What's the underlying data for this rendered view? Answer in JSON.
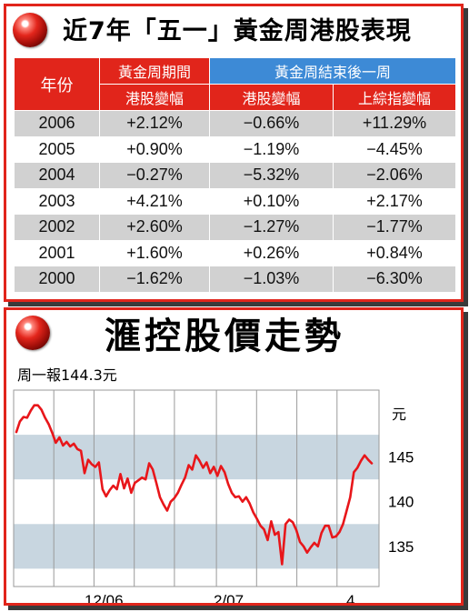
{
  "table_panel": {
    "title": "近7年「五一」黃金周港股表現",
    "headers": {
      "year": "年份",
      "during_main": "黃金周期間",
      "during_sub": "港股變幅",
      "after_main": "黃金周結束後一周",
      "after_hk": "港股變幅",
      "after_sh": "上綜指變幅"
    },
    "rows": [
      {
        "year": "2006",
        "during": "+2.12%",
        "after_hk": "−0.66%",
        "after_sh": "+11.29%"
      },
      {
        "year": "2005",
        "during": "+0.90%",
        "after_hk": "−1.19%",
        "after_sh": "−4.45%"
      },
      {
        "year": "2004",
        "during": "−0.27%",
        "after_hk": "−5.32%",
        "after_sh": "−2.06%"
      },
      {
        "year": "2003",
        "during": "+4.21%",
        "after_hk": "+0.10%",
        "after_sh": "+2.17%"
      },
      {
        "year": "2002",
        "during": "+2.60%",
        "after_hk": "−1.27%",
        "after_sh": "−1.77%"
      },
      {
        "year": "2001",
        "during": "+1.60%",
        "after_hk": "+0.26%",
        "after_sh": "+0.84%"
      },
      {
        "year": "2000",
        "during": "−1.62%",
        "after_hk": "−1.03%",
        "after_sh": "−6.30%"
      }
    ]
  },
  "chart_panel": {
    "title": "滙控股價走勢",
    "subtitle": "周一報144.3元"
  },
  "colors": {
    "accent_red": "#e1251b",
    "header_blue": "#3d8ad6",
    "row_gray": "#d1d1d1",
    "band_blue": "#c8d6e0",
    "line_red": "#e8161a"
  },
  "chart_data": {
    "type": "line",
    "title": "滙控股價走勢",
    "subtitle": "周一報144.3元",
    "ylabel": "元",
    "ylim": [
      130.5,
      152.5
    ],
    "yticks": [
      135,
      140,
      145
    ],
    "xtick_labels": [
      "12/06",
      "2/07",
      "4"
    ],
    "grid": true,
    "series": [
      {
        "values": [
          147.8,
          149.0,
          149.5,
          149.4,
          150.2,
          150.8,
          150.8,
          150.3,
          149.4,
          148.7,
          147.7,
          146.6,
          147.2,
          146.3,
          146.7,
          146.2,
          146.5,
          145.9,
          145.7,
          143.2,
          144.7,
          144.2,
          143.9,
          144.4,
          141.4,
          140.6,
          141.3,
          141.8,
          141.4,
          143.1,
          141.5,
          142.6,
          141.0,
          142.1,
          142.4,
          142.7,
          142.5,
          144.3,
          143.6,
          142.1,
          140.5,
          139.7,
          139.0,
          140.0,
          140.4,
          141.0,
          141.9,
          142.7,
          144.1,
          143.6,
          145.2,
          144.6,
          143.8,
          144.4,
          143.2,
          143.9,
          142.9,
          144.0,
          143.3,
          142.0,
          141.0,
          140.5,
          140.6,
          140.0,
          140.5,
          139.8,
          138.8,
          138.1,
          137.3,
          136.9,
          135.7,
          137.8,
          136.3,
          136.6,
          133.0,
          137.5,
          138.0,
          137.7,
          136.8,
          135.5,
          135.0,
          134.3,
          134.9,
          135.4,
          135.0,
          136.5,
          137.3,
          137.3,
          136.0,
          136.1,
          136.6,
          137.5,
          139.0,
          140.5,
          143.3,
          143.8,
          144.6,
          145.2,
          144.7,
          144.3
        ]
      }
    ]
  }
}
